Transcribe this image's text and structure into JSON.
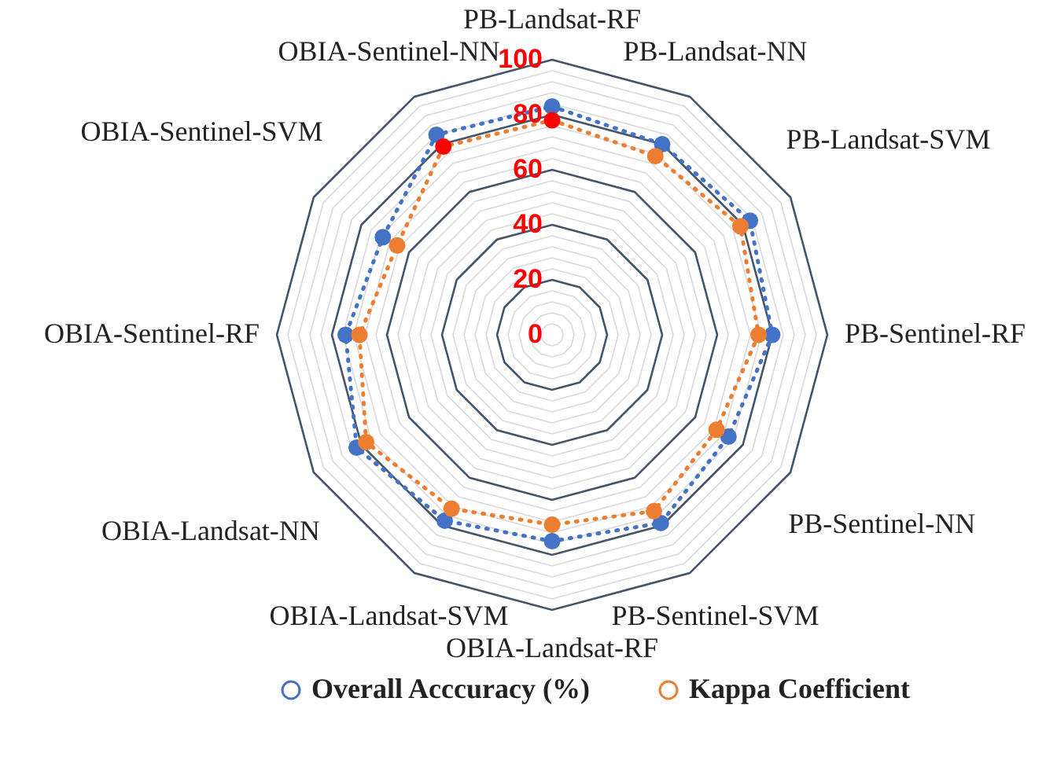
{
  "chart_data": {
    "type": "radar",
    "categories": [
      "PB-Landsat-RF",
      "PB-Landsat-NN",
      "PB-Landsat-SVM",
      "PB-Sentinel-RF",
      "PB-Sentinel-NN",
      "PB-Sentinel-SVM",
      "OBIA-Landsat-RF",
      "OBIA-Landsat-SVM",
      "OBIA-Landsat-NN",
      "OBIA-Sentinel-RF",
      "OBIA-Sentinel-SVM",
      "OBIA-Sentinel-NN"
    ],
    "series": [
      {
        "name": "Overall Acccuracy (%)",
        "color": "#4472c4",
        "values": [
          83,
          80,
          83,
          80,
          74,
          79,
          75,
          78,
          82,
          75,
          71,
          84
        ]
      },
      {
        "name": "Kappa Coefficient",
        "color": "#ed7d31",
        "colors": [
          "#ff0000",
          "#ed7d31",
          "#ed7d31",
          "#ed7d31",
          "#ed7d31",
          "#ed7d31",
          "#ed7d31",
          "#ed7d31",
          "#ed7d31",
          "#ed7d31",
          "#ed7d31",
          "#ff0000"
        ],
        "values": [
          78,
          75,
          79,
          75,
          69,
          74,
          69,
          73,
          78,
          70,
          65,
          79
        ]
      }
    ],
    "ylim": [
      0,
      100
    ],
    "yticks": [
      0,
      20,
      40,
      60,
      80,
      100
    ],
    "grid": true,
    "legend": "bottom",
    "marker": "circle",
    "line_style": "dotted"
  }
}
